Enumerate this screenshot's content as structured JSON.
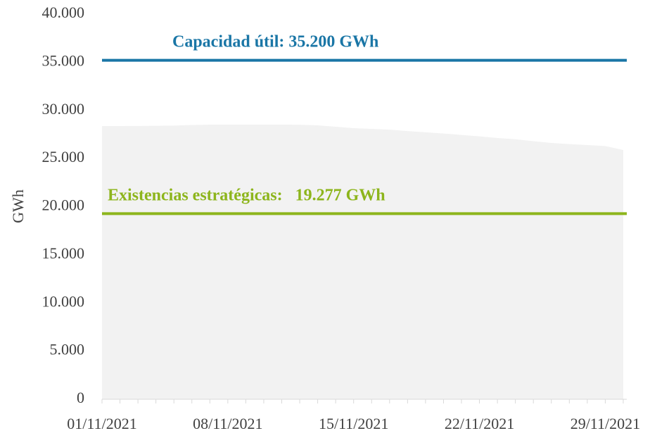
{
  "chart_data": {
    "type": "area",
    "y_label": "GWh",
    "categories": [
      "01/11/2021",
      null,
      null,
      null,
      null,
      null,
      null,
      "08/11/2021",
      null,
      null,
      null,
      null,
      null,
      null,
      "15/11/2021",
      null,
      null,
      null,
      null,
      null,
      null,
      "22/11/2021",
      null,
      null,
      null,
      null,
      null,
      null,
      "29/11/2021",
      null
    ],
    "values": [
      28370,
      28370,
      28380,
      28400,
      28420,
      28480,
      28520,
      28520,
      28520,
      28520,
      28520,
      28510,
      28450,
      28300,
      28150,
      28080,
      28000,
      27850,
      27720,
      27600,
      27450,
      27300,
      27130,
      27000,
      26800,
      26620,
      26500,
      26400,
      26300,
      25890
    ],
    "color": "#f2f2f2",
    "ylim": [
      0,
      40000
    ],
    "yticks": [
      0,
      {
        "value": 5000,
        "label": "5.000"
      },
      {
        "value": 10000,
        "label": "10.000"
      },
      {
        "value": 15000,
        "label": "15.000"
      },
      {
        "value": 20000,
        "label": "20.000"
      },
      {
        "value": 25000,
        "label": "25.000"
      },
      {
        "value": 30000,
        "label": "30.000"
      },
      {
        "value": 35000,
        "label": "35.000"
      },
      {
        "value": 40000,
        "label": "40.000"
      }
    ],
    "reference_lines": [
      {
        "value": 35200,
        "label": "Capacidad útil: 35.200 GWh",
        "color": "#1a76a6"
      },
      {
        "value": 19277,
        "label": "Existencias estratégicas:   19.277 GWh",
        "color": "#8db51c"
      }
    ]
  }
}
